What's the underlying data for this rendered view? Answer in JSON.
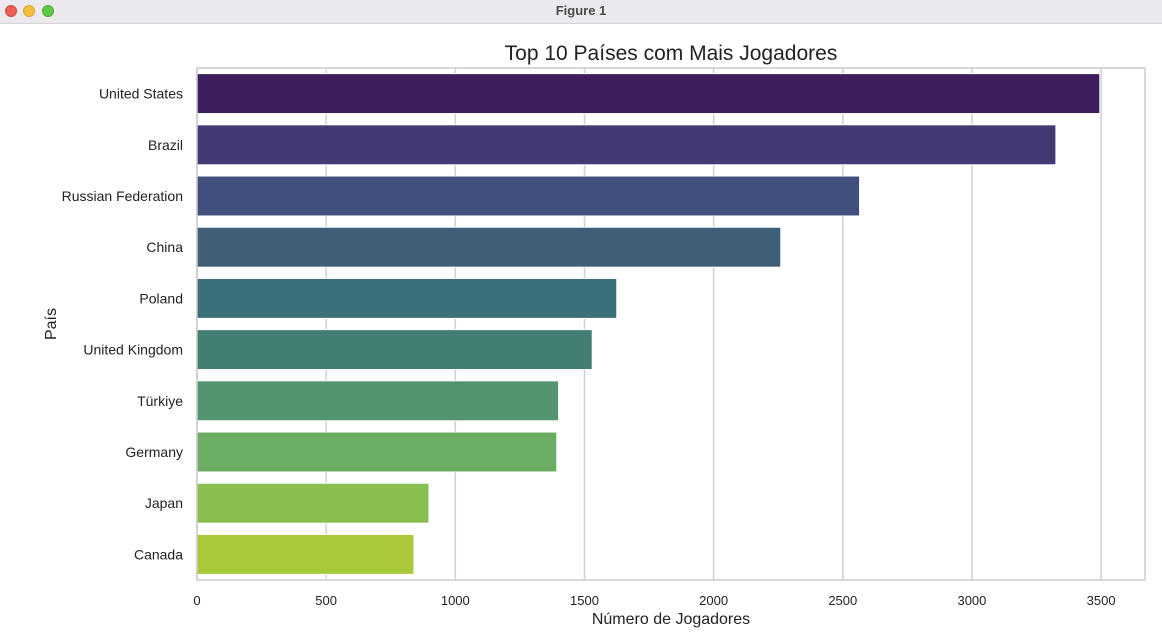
{
  "window": {
    "title": "Figure 1",
    "buttons": [
      "close",
      "minimize",
      "zoom"
    ]
  },
  "chart_data": {
    "type": "bar",
    "orientation": "horizontal",
    "title": "Top 10 Países com Mais Jogadores",
    "xlabel": "Número de Jogadores",
    "ylabel": "País",
    "categories": [
      "United States",
      "Brazil",
      "Russian Federation",
      "China",
      "Poland",
      "United Kingdom",
      "Türkiye",
      "Germany",
      "Japan",
      "Canada"
    ],
    "values": [
      3495,
      3325,
      2565,
      2260,
      1625,
      1530,
      1400,
      1393,
      898,
      840
    ],
    "colors": [
      "#3e1f5e",
      "#433a74",
      "#414f7d",
      "#3e5f77",
      "#3c7078",
      "#427e74",
      "#52956e",
      "#6aad63",
      "#89bf50",
      "#aac93a"
    ],
    "xlim": [
      0,
      3670
    ],
    "xticks": [
      0,
      500,
      1000,
      1500,
      2000,
      2500,
      3000,
      3500
    ],
    "grid": "vertical",
    "legend": "none"
  }
}
